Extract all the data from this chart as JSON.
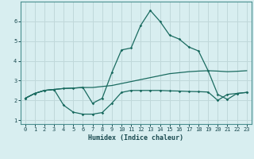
{
  "xlabel": "Humidex (Indice chaleur)",
  "bg_color": "#d8eef0",
  "grid_color": "#c0d8da",
  "line_color": "#1a6b60",
  "xlim": [
    -0.5,
    23.5
  ],
  "ylim": [
    0.8,
    7.0
  ],
  "yticks": [
    1,
    2,
    3,
    4,
    5,
    6
  ],
  "xticks": [
    0,
    1,
    2,
    3,
    4,
    5,
    6,
    7,
    8,
    9,
    10,
    11,
    12,
    13,
    14,
    15,
    16,
    17,
    18,
    19,
    20,
    21,
    22,
    23
  ],
  "curve1_x": [
    0,
    1,
    2,
    3,
    4,
    5,
    6,
    7,
    8,
    9,
    10,
    11,
    12,
    13,
    14,
    15,
    16,
    17,
    18,
    19,
    20,
    21,
    22,
    23
  ],
  "curve1_y": [
    2.1,
    2.35,
    2.5,
    2.55,
    2.6,
    2.62,
    2.65,
    2.65,
    2.7,
    2.75,
    2.85,
    2.95,
    3.05,
    3.15,
    3.25,
    3.35,
    3.4,
    3.45,
    3.48,
    3.5,
    3.48,
    3.45,
    3.47,
    3.5
  ],
  "curve2_x": [
    0,
    1,
    2,
    3,
    4,
    5,
    6,
    7,
    8,
    9,
    10,
    11,
    12,
    13,
    14,
    15,
    16,
    17,
    18,
    19,
    20,
    21,
    22,
    23
  ],
  "curve2_y": [
    2.1,
    2.35,
    2.5,
    2.55,
    1.75,
    1.4,
    1.3,
    1.3,
    1.38,
    1.85,
    2.4,
    2.5,
    2.5,
    2.5,
    2.5,
    2.48,
    2.47,
    2.45,
    2.44,
    2.42,
    2.0,
    2.3,
    2.35,
    2.4
  ],
  "curve3_x": [
    0,
    1,
    2,
    3,
    4,
    5,
    6,
    7,
    8,
    9,
    10,
    11,
    12,
    13,
    14,
    15,
    16,
    17,
    18,
    19,
    20,
    21,
    22,
    23
  ],
  "curve3_y": [
    2.1,
    2.35,
    2.5,
    2.55,
    2.6,
    2.62,
    2.65,
    1.85,
    2.1,
    3.4,
    4.55,
    4.65,
    5.8,
    6.55,
    6.0,
    5.3,
    5.1,
    4.7,
    4.5,
    3.5,
    2.3,
    2.05,
    2.35,
    2.4
  ]
}
